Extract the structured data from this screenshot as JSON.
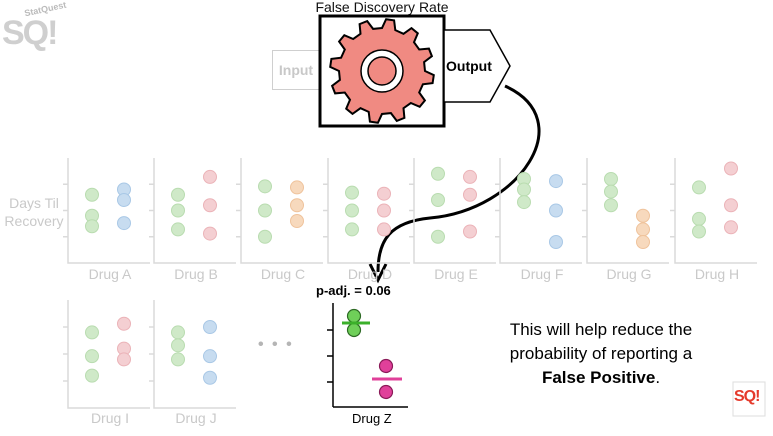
{
  "logo": {
    "text": "StatQuest",
    "short": "SQ!"
  },
  "process": {
    "title": "False Discovery Rate",
    "input_label": "Input",
    "output_label": "Output"
  },
  "y_axis_label": {
    "line1": "Days Til",
    "line2": "Recovery"
  },
  "colors": {
    "gear": "#f08a82",
    "green": "#6fcf59",
    "magenta": "#e0409a",
    "faint_green": "#cfe9c8",
    "faint_blue": "#c7dcf0",
    "faint_pink": "#f4cfd2",
    "faint_orange": "#f7d9bd"
  },
  "panels": [
    {
      "label": "Drug A",
      "left": "green",
      "right": "blue"
    },
    {
      "label": "Drug B",
      "left": "green",
      "right": "pink"
    },
    {
      "label": "Drug C",
      "left": "green",
      "right": "orange"
    },
    {
      "label": "Drug D",
      "left": "green",
      "right": "pink"
    },
    {
      "label": "Drug E",
      "left": "green",
      "right": "pink"
    },
    {
      "label": "Drug F",
      "left": "green",
      "right": "blue"
    },
    {
      "label": "Drug G",
      "left": "green",
      "right": "orange"
    },
    {
      "label": "Drug H",
      "left": "green",
      "right": "pink"
    },
    {
      "label": "Drug I",
      "left": "green",
      "right": "pink"
    },
    {
      "label": "Drug J",
      "left": "green",
      "right": "blue"
    }
  ],
  "ellipsis": "• • •",
  "highlight": {
    "label": "Drug Z",
    "p_value": "p-adj. = 0.06"
  },
  "message": {
    "line1": "This will help reduce the",
    "line2": "probability of reporting a",
    "bold": "False Positive",
    "period": "."
  }
}
